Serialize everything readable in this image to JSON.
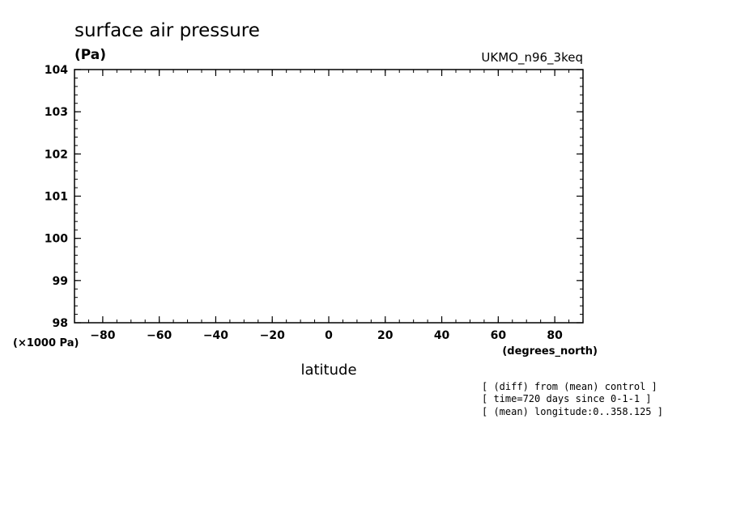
{
  "chart_data": {
    "type": "line",
    "title": "surface air pressure",
    "units_label": "(Pa)",
    "model_label": "UKMO_n96_3keq",
    "xlabel": "latitude",
    "x_unit_label": "(degrees_north)",
    "y_scale_label": "(×1000 Pa)",
    "xlim": [
      -90,
      90
    ],
    "ylim": [
      98,
      104
    ],
    "x_ticks": [
      -80,
      -60,
      -40,
      -20,
      0,
      20,
      40,
      60,
      80
    ],
    "x_tick_labels": [
      "−80",
      "−60",
      "−40",
      "−20",
      "0",
      "20",
      "40",
      "60",
      "80"
    ],
    "y_ticks": [
      98,
      99,
      100,
      101,
      102,
      103,
      104
    ],
    "y_tick_labels": [
      "98",
      "99",
      "100",
      "101",
      "102",
      "103",
      "104"
    ],
    "series": [],
    "grid": false,
    "notes": [
      "[ (diff) from (mean) control ]",
      "[ time=720 days since 0-1-1 ]",
      "[ (mean) longitude:0..358.125 ]"
    ]
  }
}
